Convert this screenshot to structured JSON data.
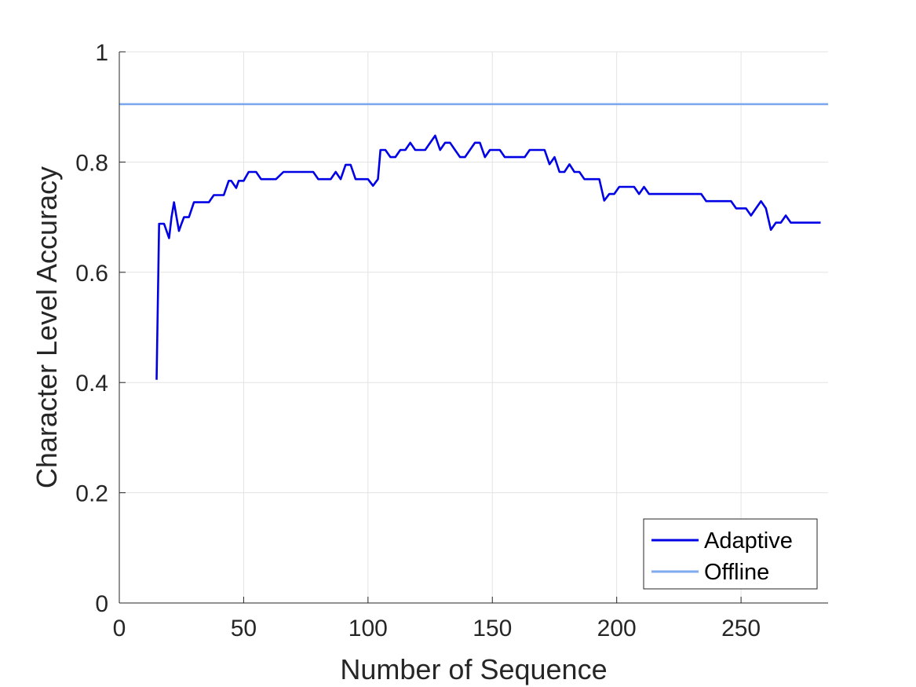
{
  "chart_data": {
    "type": "line",
    "title": "",
    "xlabel": "Number of Sequence",
    "ylabel": "Character Level Accuracy",
    "xlim": [
      0,
      285
    ],
    "ylim": [
      0,
      1
    ],
    "xticks": [
      0,
      50,
      100,
      150,
      200,
      250
    ],
    "yticks": [
      0,
      0.2,
      0.4,
      0.6,
      0.8,
      1
    ],
    "xtick_labels": [
      "0",
      "50",
      "100",
      "150",
      "200",
      "250"
    ],
    "ytick_labels": [
      "0",
      "0.2",
      "0.4",
      "0.6",
      "0.8",
      "1"
    ],
    "grid": true,
    "legend_position": "bottom-right",
    "series": [
      {
        "name": "Adaptive",
        "color": "#0000e6",
        "x": [
          15,
          16,
          17,
          18,
          19,
          20,
          21,
          22,
          23,
          24,
          25,
          26,
          27,
          28,
          30,
          32,
          34,
          36,
          38,
          40,
          42,
          44,
          45,
          47,
          48,
          50,
          52,
          55,
          57,
          60,
          63,
          66,
          68,
          70,
          73,
          76,
          78,
          80,
          82,
          85,
          87,
          89,
          91,
          93,
          95,
          97,
          99,
          100,
          102,
          104,
          105,
          107,
          109,
          111,
          113,
          115,
          117,
          119,
          121,
          123,
          125,
          127,
          129,
          131,
          133,
          135,
          137,
          139,
          141,
          143,
          145,
          147,
          149,
          151,
          153,
          155,
          157,
          159,
          161,
          163,
          165,
          167,
          169,
          171,
          173,
          175,
          177,
          179,
          181,
          183,
          185,
          187,
          189,
          191,
          193,
          195,
          197,
          199,
          201,
          203,
          205,
          207,
          209,
          211,
          213,
          215,
          217,
          220,
          223,
          226,
          229,
          232,
          234,
          236,
          238,
          240,
          242,
          244,
          246,
          248,
          250,
          252,
          254,
          256,
          258,
          260,
          262,
          264,
          266,
          268,
          270,
          272,
          275,
          278,
          282
        ],
        "y": [
          0.405,
          0.688,
          0.688,
          0.688,
          0.675,
          0.662,
          0.7,
          0.727,
          0.7,
          0.675,
          0.688,
          0.7,
          0.7,
          0.7,
          0.727,
          0.727,
          0.727,
          0.727,
          0.74,
          0.74,
          0.74,
          0.766,
          0.766,
          0.753,
          0.766,
          0.766,
          0.782,
          0.782,
          0.769,
          0.769,
          0.769,
          0.782,
          0.782,
          0.782,
          0.782,
          0.782,
          0.782,
          0.769,
          0.769,
          0.769,
          0.782,
          0.769,
          0.795,
          0.795,
          0.769,
          0.769,
          0.769,
          0.769,
          0.757,
          0.769,
          0.822,
          0.822,
          0.809,
          0.809,
          0.822,
          0.822,
          0.835,
          0.822,
          0.822,
          0.822,
          0.835,
          0.848,
          0.822,
          0.835,
          0.835,
          0.822,
          0.809,
          0.809,
          0.822,
          0.835,
          0.835,
          0.809,
          0.822,
          0.822,
          0.822,
          0.809,
          0.809,
          0.809,
          0.809,
          0.809,
          0.822,
          0.822,
          0.822,
          0.822,
          0.796,
          0.809,
          0.782,
          0.782,
          0.796,
          0.782,
          0.782,
          0.769,
          0.769,
          0.769,
          0.769,
          0.73,
          0.742,
          0.742,
          0.755,
          0.755,
          0.755,
          0.755,
          0.742,
          0.755,
          0.742,
          0.742,
          0.742,
          0.742,
          0.742,
          0.742,
          0.742,
          0.742,
          0.742,
          0.729,
          0.729,
          0.729,
          0.729,
          0.729,
          0.729,
          0.716,
          0.716,
          0.716,
          0.703,
          0.716,
          0.729,
          0.716,
          0.677,
          0.69,
          0.69,
          0.703,
          0.69,
          0.69,
          0.69,
          0.69,
          0.69
        ]
      },
      {
        "name": "Offline",
        "color": "#80aaf0",
        "x": [
          0,
          285
        ],
        "y": [
          0.905,
          0.905
        ]
      }
    ]
  }
}
